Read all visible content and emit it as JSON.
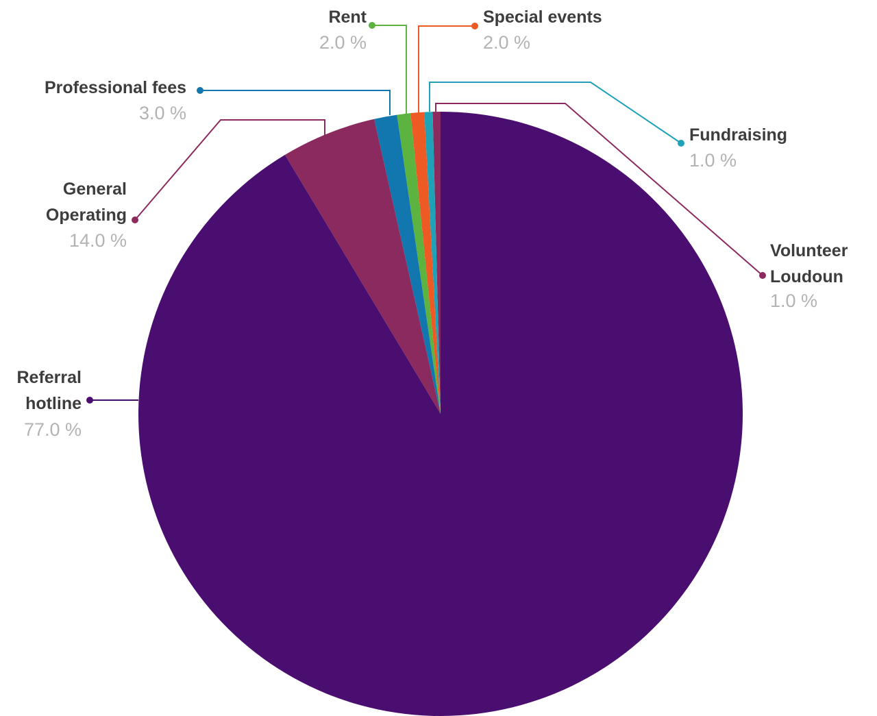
{
  "chart_data": {
    "type": "pie",
    "slices": [
      {
        "label": [
          "Volunteer",
          "Loudoun"
        ],
        "value": 1.0,
        "pct_label": "1.0 %",
        "color": "#8B2A5E"
      },
      {
        "label": [
          "Fundraising"
        ],
        "value": 1.0,
        "pct_label": "1.0 %",
        "color": "#1FA1B8"
      },
      {
        "label": [
          "Special events"
        ],
        "value": 2.0,
        "pct_label": "2.0 %",
        "color": "#EE5A24"
      },
      {
        "label": [
          "Rent"
        ],
        "value": 2.0,
        "pct_label": "2.0 %",
        "color": "#5DB340"
      },
      {
        "label": [
          "Professional fees"
        ],
        "value": 3.0,
        "pct_label": "3.0 %",
        "color": "#1277AE"
      },
      {
        "label": [
          "General",
          "Operating"
        ],
        "value": 14.0,
        "pct_label": "14.0 %",
        "color": "#8B2A5E"
      },
      {
        "label": [
          "Referral",
          "hotline"
        ],
        "value": 77.0,
        "pct_label": "77.0 %",
        "color": "#4A0E70"
      }
    ]
  }
}
